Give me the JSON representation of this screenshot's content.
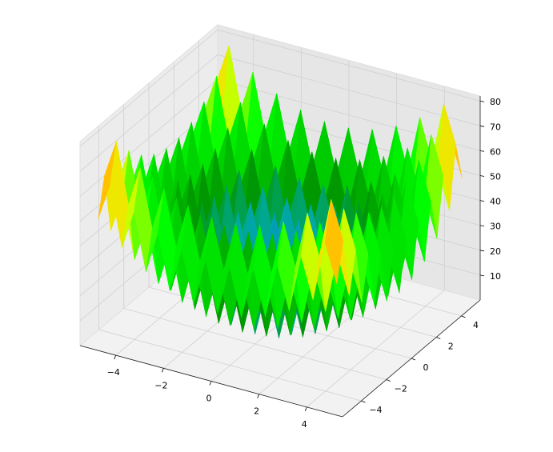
{
  "chart_data": {
    "type": "surface",
    "colormap": "nipy_spectral",
    "x": [
      -5,
      -4.5,
      -4,
      -3.5,
      -3,
      -2.5,
      -2,
      -1.5,
      -1,
      -0.5,
      0,
      0.5,
      1,
      1.5,
      2,
      2.5,
      3,
      3.5,
      4,
      4.5,
      5
    ],
    "y": [
      -5,
      -4.5,
      -4,
      -3.5,
      -3,
      -2.5,
      -2,
      -1.5,
      -1,
      -0.5,
      0,
      0.5,
      1,
      1.5,
      2,
      2.5,
      3,
      3.5,
      4,
      4.5,
      5
    ],
    "z": [
      [
        50,
        65.25,
        41,
        57.25,
        34,
        51.25,
        29,
        47.25,
        26,
        45.25,
        25,
        45.25,
        26,
        47.25,
        29,
        51.25,
        34,
        57.25,
        41,
        65.25,
        50
      ],
      [
        65.25,
        80.5,
        56.25,
        72.5,
        49.25,
        66.5,
        44.25,
        62.5,
        41.25,
        60.5,
        40.25,
        60.5,
        41.25,
        62.5,
        44.25,
        66.5,
        49.25,
        72.5,
        56.25,
        80.5,
        65.25
      ],
      [
        41,
        56.25,
        32,
        48.25,
        25,
        42.25,
        20,
        38.25,
        17,
        36.25,
        16,
        36.25,
        17,
        38.25,
        20,
        42.25,
        25,
        48.25,
        32,
        56.25,
        41
      ],
      [
        57.25,
        72.5,
        48.25,
        64.5,
        41.25,
        58.5,
        36.25,
        54.5,
        33.25,
        52.5,
        32.25,
        52.5,
        33.25,
        54.5,
        36.25,
        58.5,
        41.25,
        64.5,
        48.25,
        72.5,
        57.25
      ],
      [
        34,
        49.25,
        25,
        41.25,
        18,
        35.25,
        13,
        31.25,
        10,
        29.25,
        9,
        29.25,
        10,
        31.25,
        13,
        35.25,
        18,
        41.25,
        25,
        49.25,
        34
      ],
      [
        51.25,
        66.5,
        42.25,
        58.5,
        35.25,
        52.5,
        30.25,
        48.5,
        27.25,
        46.5,
        26.25,
        46.5,
        27.25,
        48.5,
        30.25,
        52.5,
        35.25,
        58.5,
        42.25,
        66.5,
        51.25
      ],
      [
        29,
        44.25,
        20,
        36.25,
        13,
        30.25,
        8,
        26.25,
        5,
        24.25,
        4,
        24.25,
        5,
        26.25,
        8,
        30.25,
        13,
        36.25,
        20,
        44.25,
        29
      ],
      [
        47.25,
        62.5,
        38.25,
        54.5,
        31.25,
        48.5,
        26.25,
        44.5,
        23.25,
        42.5,
        22.25,
        42.5,
        23.25,
        44.5,
        26.25,
        48.5,
        31.25,
        54.5,
        38.25,
        62.5,
        47.25
      ],
      [
        26,
        41.25,
        17,
        33.25,
        10,
        27.25,
        5,
        23.25,
        2,
        21.25,
        1,
        21.25,
        2,
        23.25,
        5,
        27.25,
        10,
        33.25,
        17,
        41.25,
        26
      ],
      [
        45.25,
        60.5,
        36.25,
        52.5,
        29.25,
        46.5,
        24.25,
        42.5,
        21.25,
        40.5,
        20.25,
        40.5,
        21.25,
        42.5,
        24.25,
        46.5,
        29.25,
        52.5,
        36.25,
        60.5,
        45.25
      ],
      [
        25,
        40.25,
        16,
        32.25,
        9,
        26.25,
        4,
        22.25,
        1,
        20.25,
        0,
        20.25,
        1,
        22.25,
        4,
        26.25,
        9,
        32.25,
        16,
        40.25,
        25
      ],
      [
        45.25,
        60.5,
        36.25,
        52.5,
        29.25,
        46.5,
        24.25,
        42.5,
        21.25,
        40.5,
        20.25,
        40.5,
        21.25,
        42.5,
        24.25,
        46.5,
        29.25,
        52.5,
        36.25,
        60.5,
        45.25
      ],
      [
        26,
        41.25,
        17,
        33.25,
        10,
        27.25,
        5,
        23.25,
        2,
        21.25,
        1,
        21.25,
        2,
        23.25,
        5,
        27.25,
        10,
        33.25,
        17,
        41.25,
        26
      ],
      [
        47.25,
        62.5,
        38.25,
        54.5,
        31.25,
        48.5,
        26.25,
        44.5,
        23.25,
        42.5,
        22.25,
        42.5,
        23.25,
        44.5,
        26.25,
        48.5,
        31.25,
        54.5,
        38.25,
        62.5,
        47.25
      ],
      [
        29,
        44.25,
        20,
        36.25,
        13,
        30.25,
        8,
        26.25,
        5,
        24.25,
        4,
        24.25,
        5,
        26.25,
        8,
        30.25,
        13,
        36.25,
        20,
        44.25,
        29
      ],
      [
        51.25,
        66.5,
        42.25,
        58.5,
        35.25,
        52.5,
        30.25,
        48.5,
        27.25,
        46.5,
        26.25,
        46.5,
        27.25,
        48.5,
        30.25,
        52.5,
        35.25,
        58.5,
        42.25,
        66.5,
        51.25
      ],
      [
        34,
        49.25,
        25,
        41.25,
        18,
        35.25,
        13,
        31.25,
        10,
        29.25,
        9,
        29.25,
        10,
        31.25,
        13,
        35.25,
        18,
        41.25,
        25,
        49.25,
        34
      ],
      [
        57.25,
        72.5,
        48.25,
        64.5,
        41.25,
        58.5,
        36.25,
        54.5,
        33.25,
        52.5,
        32.25,
        52.5,
        33.25,
        54.5,
        36.25,
        58.5,
        41.25,
        64.5,
        48.25,
        72.5,
        57.25
      ],
      [
        41,
        56.25,
        32,
        48.25,
        25,
        42.25,
        20,
        38.25,
        17,
        36.25,
        16,
        36.25,
        17,
        38.25,
        20,
        42.25,
        25,
        48.25,
        32,
        56.25,
        41
      ],
      [
        65.25,
        80.5,
        56.25,
        72.5,
        49.25,
        66.5,
        44.25,
        62.5,
        41.25,
        60.5,
        40.25,
        60.5,
        41.25,
        62.5,
        44.25,
        66.5,
        49.25,
        72.5,
        56.25,
        80.5,
        65.25
      ],
      [
        50,
        65.25,
        41,
        57.25,
        34,
        51.25,
        29,
        47.25,
        26,
        45.25,
        25,
        45.25,
        26,
        47.25,
        29,
        51.25,
        34,
        57.25,
        41,
        65.25,
        50
      ]
    ],
    "xlim": [
      -5.5,
      5.5
    ],
    "ylim": [
      -5.5,
      5.5
    ],
    "zlim": [
      0,
      82
    ],
    "xticks": [
      {
        "value": -4,
        "label": "−4"
      },
      {
        "value": -2,
        "label": "−2"
      },
      0,
      2,
      4
    ],
    "yticks": [
      {
        "value": -4,
        "label": "−4"
      },
      {
        "value": -2,
        "label": "−2"
      },
      0,
      2,
      4
    ],
    "zticks": [
      10,
      20,
      30,
      40,
      50,
      60,
      70,
      80
    ],
    "grid": true
  }
}
